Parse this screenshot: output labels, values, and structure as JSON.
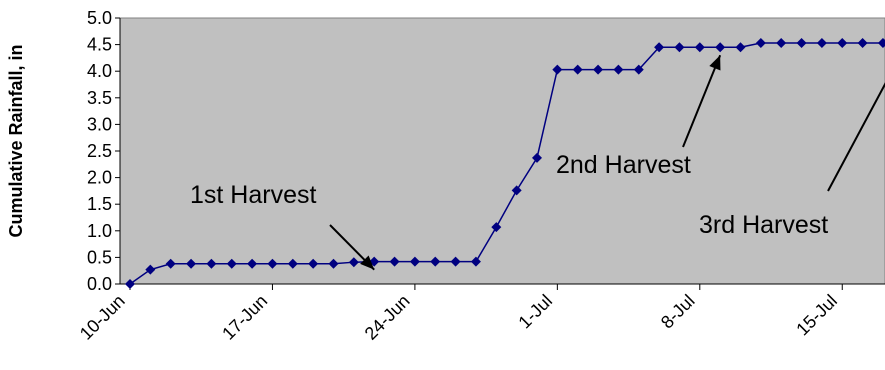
{
  "chart_data": {
    "type": "line",
    "title": "",
    "xlabel": "",
    "ylabel": "Cumulative Rainfall, in",
    "ylim": [
      0,
      5.0
    ],
    "xlim": [
      "2000-06-10",
      "2000-07-19"
    ],
    "grid": false,
    "plot_background": "#c0c0c0",
    "y_ticks": [
      "0.0",
      "0.5",
      "1.0",
      "1.5",
      "2.0",
      "2.5",
      "3.0",
      "3.5",
      "4.0",
      "4.5",
      "5.0"
    ],
    "x_ticks": [
      {
        "label": "10-Jun",
        "date": "2000-06-10"
      },
      {
        "label": "17-Jun",
        "date": "2000-06-17"
      },
      {
        "label": "24-Jun",
        "date": "2000-06-24"
      },
      {
        "label": "1-Jul",
        "date": "2000-07-01"
      },
      {
        "label": "8-Jul",
        "date": "2000-07-08"
      },
      {
        "label": "15-Jul",
        "date": "2000-07-15"
      }
    ],
    "series": [
      {
        "color": "#000080",
        "marker": "diamond",
        "x": [
          "2000-06-10",
          "2000-06-11",
          "2000-06-12",
          "2000-06-13",
          "2000-06-14",
          "2000-06-15",
          "2000-06-16",
          "2000-06-17",
          "2000-06-18",
          "2000-06-19",
          "2000-06-20",
          "2000-06-21",
          "2000-06-22",
          "2000-06-23",
          "2000-06-24",
          "2000-06-25",
          "2000-06-26",
          "2000-06-27",
          "2000-06-28",
          "2000-06-29",
          "2000-06-30",
          "2000-07-01",
          "2000-07-02",
          "2000-07-03",
          "2000-07-04",
          "2000-07-05",
          "2000-07-06",
          "2000-07-07",
          "2000-07-08",
          "2000-07-09",
          "2000-07-10",
          "2000-07-11",
          "2000-07-12",
          "2000-07-13",
          "2000-07-14",
          "2000-07-15",
          "2000-07-16",
          "2000-07-17",
          "2000-07-18",
          "2000-07-19"
        ],
        "values": [
          0.0,
          0.27,
          0.38,
          0.38,
          0.38,
          0.38,
          0.38,
          0.38,
          0.38,
          0.38,
          0.38,
          0.41,
          0.42,
          0.42,
          0.42,
          0.42,
          0.42,
          0.42,
          1.07,
          1.76,
          2.37,
          4.03,
          4.03,
          4.03,
          4.03,
          4.03,
          4.45,
          4.45,
          4.45,
          4.45,
          4.45,
          4.53,
          4.53,
          4.53,
          4.53,
          4.53,
          4.53,
          4.53,
          4.53,
          4.55
        ]
      }
    ],
    "annotations": [
      {
        "text": "1st Harvest",
        "date": "2000-06-22",
        "value": 0.42
      },
      {
        "text": "2nd Harvest",
        "date": "2000-07-09",
        "value": 4.45
      },
      {
        "text": "3rd Harvest",
        "date": "2000-07-18",
        "value": 4.55
      }
    ]
  }
}
